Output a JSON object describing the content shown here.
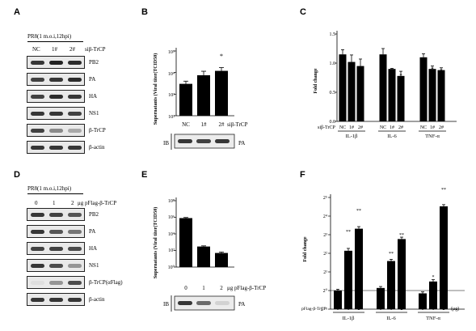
{
  "panels": {
    "A": {
      "letter": "A",
      "header": "PR8(1 m.o.i,12hpi)",
      "lanes": [
        "NC",
        "1#",
        "2#"
      ],
      "treatment": "siβ-TrCP",
      "blots": [
        {
          "label": "PB2",
          "intensity": [
            0.85,
            0.95,
            0.9
          ]
        },
        {
          "label": "PA",
          "intensity": [
            0.8,
            0.85,
            0.9
          ]
        },
        {
          "label": "HA",
          "intensity": [
            0.8,
            0.9,
            0.85
          ]
        },
        {
          "label": "NS1",
          "intensity": [
            0.85,
            0.85,
            0.8
          ]
        },
        {
          "label": "β-TrCP",
          "intensity": [
            0.8,
            0.45,
            0.3
          ]
        },
        {
          "label": "β-actin",
          "intensity": [
            0.85,
            0.85,
            0.85
          ]
        }
      ]
    },
    "B": {
      "letter": "B",
      "ylabel": "Supernatants (Viral titer(TCID50)",
      "ytick_labels": [
        "10⁵",
        "10⁴",
        "10³",
        "10²"
      ],
      "categories": [
        "NC",
        "1#",
        "2#"
      ],
      "treatment": "siβ-TrCP",
      "blot_prefix": "IB",
      "blot_label": "PA",
      "annotations": [
        "*"
      ]
    },
    "C": {
      "letter": "C",
      "ylabel": "Fold change",
      "ytick_labels": [
        "0.0",
        "0.5",
        "1.0",
        "1.5"
      ],
      "row_prefix": "siβ-TrCP",
      "lanes": [
        "NC",
        "1#",
        "2#"
      ],
      "groups": [
        "IL-1β",
        "IL-6",
        "TNF-α"
      ],
      "annotations": [
        "*",
        "*",
        "*"
      ]
    },
    "D": {
      "letter": "D",
      "header": "PR8(1 m.o.i,12hpi)",
      "lanes": [
        "0",
        "1",
        "2"
      ],
      "treatment": "μg pFlag-β-TrCP",
      "blots": [
        {
          "label": "PB2",
          "intensity": [
            0.85,
            0.8,
            0.7
          ]
        },
        {
          "label": "PA",
          "intensity": [
            0.85,
            0.7,
            0.55
          ]
        },
        {
          "label": "HA",
          "intensity": [
            0.8,
            0.8,
            0.75
          ]
        },
        {
          "label": "NS1",
          "intensity": [
            0.85,
            0.75,
            0.4
          ]
        },
        {
          "label": "β-TrCP(αFlag)",
          "intensity": [
            0.05,
            0.4,
            0.75
          ]
        },
        {
          "label": "β-actin",
          "intensity": [
            0.85,
            0.85,
            0.85
          ]
        }
      ]
    },
    "E": {
      "letter": "E",
      "ylabel": "Supernatants (Viral titer(TCID50)",
      "ytick_labels": [
        "10⁸",
        "10⁶",
        "10⁴",
        "10²",
        "10⁰"
      ],
      "categories": [
        "0",
        "1",
        "2"
      ],
      "treatment": "μg pFlag-β-TrCP",
      "blot_prefix": "IB",
      "blot_label": "PA",
      "annotations": [
        "**",
        "**"
      ]
    },
    "F": {
      "letter": "F",
      "ylabel": "Fold change",
      "ytick_labels": [
        "2⁻¹",
        "2⁰",
        "2¹",
        "2²",
        "2³",
        "2⁴",
        "2⁵"
      ],
      "row_prefix": "pFlag-β-TrCP",
      "lanes": [
        "0",
        "1",
        "2"
      ],
      "unit": "(μg)",
      "groups": [
        "IL-1β",
        "IL-6",
        "TNF-α"
      ],
      "annotations": [
        "**",
        "**",
        "**",
        "**",
        "*",
        "**"
      ]
    }
  },
  "chart_data": [
    {
      "type": "bar",
      "panel": "B",
      "categories": [
        "NC",
        "1#",
        "2#"
      ],
      "values": [
        3000,
        7500,
        12000
      ],
      "errors": [
        1000,
        4000,
        5000
      ],
      "ylabel": "Supernatants (Viral titer(TCID50)",
      "ylim": [
        100,
        100000
      ],
      "log_scale": true,
      "significance": [
        "",
        "",
        "*"
      ]
    },
    {
      "type": "bar",
      "panel": "C",
      "categories": [
        "NC",
        "1#",
        "2#",
        "NC",
        "1#",
        "2#",
        "NC",
        "1#",
        "2#"
      ],
      "groups": [
        "IL-1β",
        "IL-6",
        "TNF-α"
      ],
      "values": [
        1.15,
        1.02,
        0.95,
        1.15,
        0.9,
        0.78,
        1.1,
        0.9,
        0.88
      ],
      "errors": [
        0.08,
        0.12,
        0.12,
        0.1,
        0.01,
        0.08,
        0.06,
        0.05,
        0.04
      ],
      "ylabel": "Fold change",
      "ylim": [
        0,
        1.5
      ],
      "significance": [
        "",
        "",
        "",
        "",
        "",
        "*",
        "",
        "*",
        "*"
      ]
    },
    {
      "type": "bar",
      "panel": "E",
      "categories": [
        "0",
        "1",
        "2"
      ],
      "values": [
        800000,
        300,
        50
      ],
      "errors": [
        150000,
        60,
        15
      ],
      "ylabel": "Supernatants (Viral titer(TCID50)",
      "ylim": [
        1,
        100000000
      ],
      "log_scale": true,
      "significance": [
        "",
        "**",
        "**"
      ]
    },
    {
      "type": "bar",
      "panel": "F",
      "categories": [
        "0",
        "1",
        "2",
        "0",
        "1",
        "2",
        "0",
        "1",
        "2"
      ],
      "groups": [
        "IL-1β",
        "IL-6",
        "TNF-α"
      ],
      "values": [
        1.0,
        4.4,
        10.0,
        1.1,
        3.0,
        6.8,
        0.9,
        1.4,
        23.0
      ],
      "errors": [
        0.05,
        0.4,
        0.8,
        0.06,
        0.2,
        0.5,
        0.05,
        0.1,
        1.5
      ],
      "ylabel": "Fold change",
      "ylim": [
        0.5,
        32
      ],
      "log_scale": true,
      "significance": [
        "",
        "**",
        "**",
        "",
        "**",
        "**",
        "",
        "*",
        "**"
      ]
    }
  ]
}
